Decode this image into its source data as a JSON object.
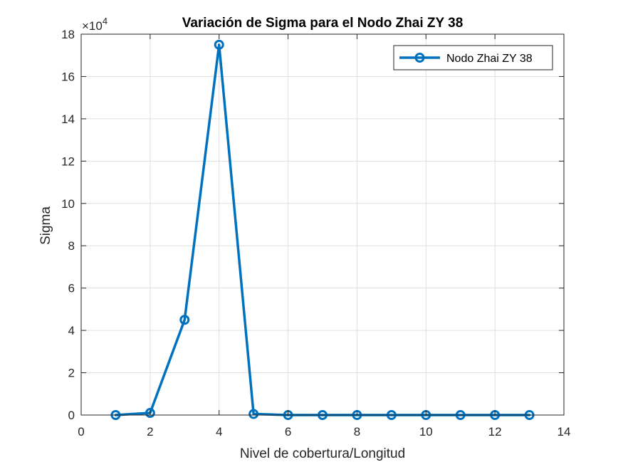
{
  "chart_data": {
    "type": "line",
    "title": "Variación de Sigma para el Nodo Zhai ZY 38",
    "xlabel": "Nivel de cobertura/Longitud",
    "ylabel": "Sigma",
    "exponent_base": "×10",
    "exponent_power": "4",
    "xlim": [
      0,
      14
    ],
    "ylim": [
      0,
      18
    ],
    "y_scale_multiplier": 10000,
    "xticks": [
      0,
      2,
      4,
      6,
      8,
      10,
      12,
      14
    ],
    "yticks": [
      0,
      2,
      4,
      6,
      8,
      10,
      12,
      14,
      16,
      18
    ],
    "grid": true,
    "legend_location": "top-right",
    "series": [
      {
        "name": "Nodo Zhai ZY 38",
        "color": "#0072BD",
        "marker": "circle",
        "x": [
          1,
          2,
          3,
          4,
          5,
          6,
          7,
          8,
          9,
          10,
          11,
          12,
          13
        ],
        "y": [
          0,
          0.1,
          4.5,
          17.5,
          0.05,
          0,
          0,
          0,
          0,
          0,
          0,
          0,
          0
        ]
      }
    ]
  }
}
